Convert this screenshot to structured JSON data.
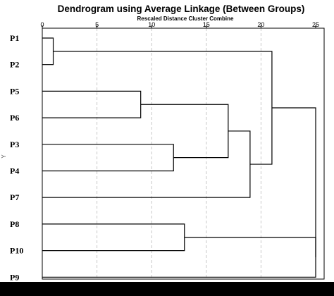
{
  "chart_data": {
    "type": "dendrogram",
    "title": "Dendrogram using Average Linkage (Between Groups)",
    "xlabel": "Rescaled Distance Cluster Combine",
    "ylabel": "Y",
    "xlim": [
      0,
      25
    ],
    "x_ticks": [
      0,
      5,
      10,
      15,
      20,
      25
    ],
    "grid": true,
    "leaves": [
      "P1",
      "P2",
      "P5",
      "P6",
      "P3",
      "P4",
      "P7",
      "P8",
      "P10",
      "P9"
    ],
    "merges": [
      {
        "a": "P1",
        "b": "P2",
        "id": "C1",
        "distance": 1
      },
      {
        "a": "P5",
        "b": "P6",
        "id": "C2",
        "distance": 9
      },
      {
        "a": "P3",
        "b": "P4",
        "id": "C3",
        "distance": 12
      },
      {
        "a": "P8",
        "b": "P10",
        "id": "C4",
        "distance": 13
      },
      {
        "a": "C2",
        "b": "C3",
        "id": "C5",
        "distance": 17
      },
      {
        "a": "C5",
        "b": "P7",
        "id": "C6",
        "distance": 19
      },
      {
        "a": "C1",
        "b": "C6",
        "id": "C7",
        "distance": 21
      },
      {
        "a": "C4",
        "b": "P9",
        "id": "C8",
        "distance": 25
      },
      {
        "a": "C7",
        "b": "C8",
        "id": "C9",
        "distance": 25
      }
    ]
  }
}
